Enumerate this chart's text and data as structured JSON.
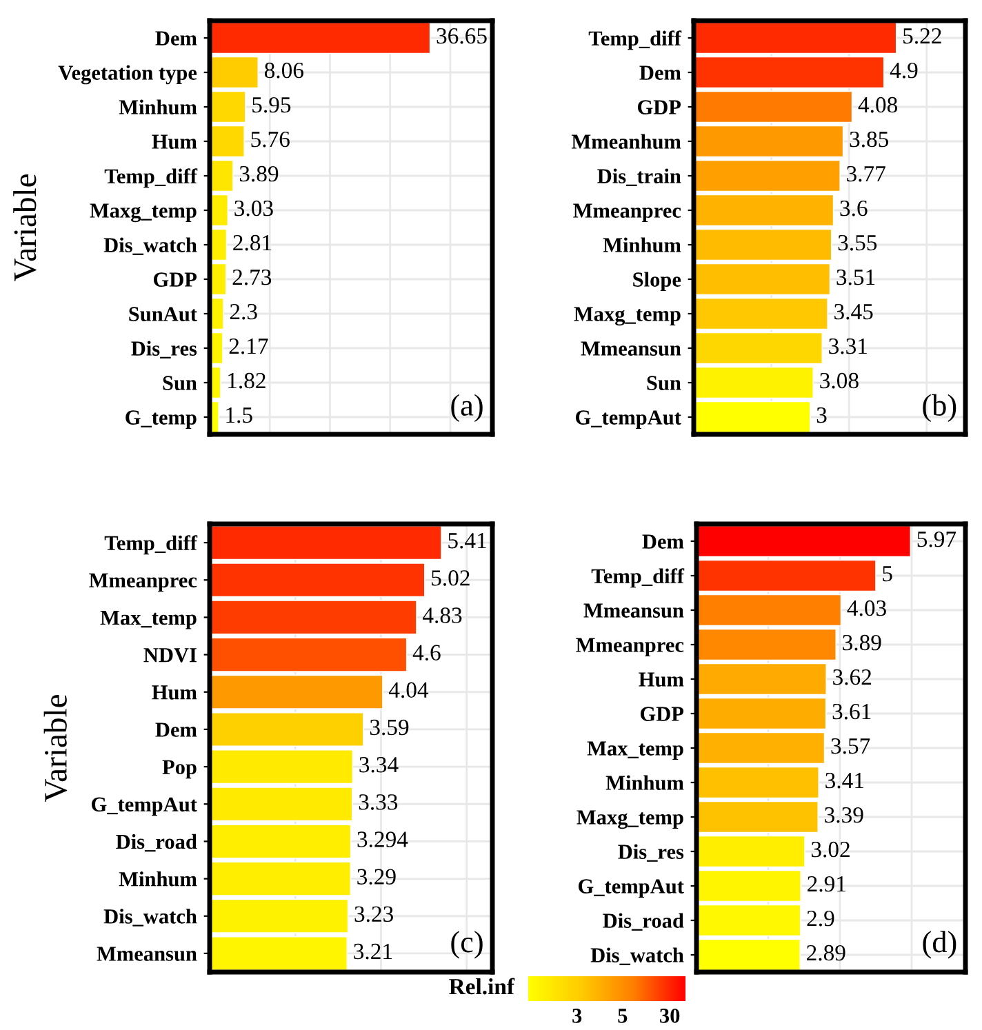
{
  "chart_data": [
    {
      "type": "bar",
      "orientation": "horizontal",
      "ylabel": "Variable",
      "annotations": [
        "(a)"
      ],
      "data_labels": true,
      "grid": true,
      "tick_labels": "y",
      "xlim": [
        0,
        47
      ],
      "xticks": [
        {
          "value": 0,
          "label": null
        },
        {
          "value": 10,
          "label": null
        },
        {
          "value": 20,
          "label": null
        },
        {
          "value": 30,
          "label": null
        },
        {
          "value": 40,
          "label": null
        }
      ],
      "categories": [
        "Dem",
        "Vegetation type",
        "Minhum",
        "Hum",
        "Temp_diff",
        "Maxg_temp",
        "Dis_watch",
        "GDP",
        "SunAut",
        "Dis_res",
        "Sun",
        "G_temp"
      ],
      "values": [
        36.65,
        8.06,
        5.95,
        5.76,
        3.89,
        3.03,
        2.81,
        2.73,
        2.3,
        2.17,
        1.82,
        1.5
      ],
      "colors": [
        "#ff2a00",
        "#ffcc00",
        "#ffd800",
        "#ffd800",
        "#ffe600",
        "#ffec00",
        "#ffee00",
        "#ffee00",
        "#fff200",
        "#fff400",
        "#fff800",
        "#ffff00"
      ]
    },
    {
      "type": "bar",
      "orientation": "horizontal",
      "annotations": [
        "(b)"
      ],
      "data_labels": true,
      "grid": true,
      "tick_labels": "y",
      "xlim": [
        0,
        7
      ],
      "xticks": [
        {
          "value": 0,
          "label": null
        },
        {
          "value": 2,
          "label": null
        },
        {
          "value": 4,
          "label": null
        },
        {
          "value": 6,
          "label": null
        }
      ],
      "categories": [
        "Temp_diff",
        "Dem",
        "GDP",
        "Mmeanhum",
        "Dis_train",
        "Mmeanprec",
        "Minhum",
        "Slope",
        "Maxg_temp",
        "Mmeansun",
        "Sun",
        "G_tempAut"
      ],
      "values": [
        5.22,
        4.9,
        4.08,
        3.85,
        3.77,
        3.6,
        3.55,
        3.51,
        3.45,
        3.31,
        3.08,
        3
      ],
      "colors": [
        "#ff2a00",
        "#ff3300",
        "#ff7a00",
        "#ff9900",
        "#ffa000",
        "#ffb300",
        "#ffbb00",
        "#ffbf00",
        "#ffc800",
        "#ffd700",
        "#fff200",
        "#ffff00"
      ]
    },
    {
      "type": "bar",
      "orientation": "horizontal",
      "ylabel": "Variable",
      "annotations": [
        "(c)"
      ],
      "data_labels": true,
      "grid": true,
      "tick_labels": "y",
      "xlim": [
        0,
        6.6
      ],
      "xticks": [
        {
          "value": 0,
          "label": null
        },
        {
          "value": 2,
          "label": null
        },
        {
          "value": 4,
          "label": null
        },
        {
          "value": 6,
          "label": null
        }
      ],
      "categories": [
        "Temp_diff",
        "Mmeanprec",
        "Max_temp",
        "NDVI",
        "Hum",
        "Dem",
        "Pop",
        "G_tempAut",
        "Dis_road",
        "Minhum",
        "Dis_watch",
        "Mmeansun"
      ],
      "values": [
        5.41,
        5.02,
        4.83,
        4.6,
        4.04,
        3.59,
        3.34,
        3.33,
        3.294,
        3.29,
        3.23,
        3.21
      ],
      "colors": [
        "#ff2a00",
        "#ff3300",
        "#ff3c00",
        "#ff5000",
        "#ff9900",
        "#ffd000",
        "#ffea00",
        "#ffea00",
        "#ffee00",
        "#ffee00",
        "#fff200",
        "#fff500"
      ]
    },
    {
      "type": "bar",
      "orientation": "horizontal",
      "annotations": [
        "(d)"
      ],
      "data_labels": true,
      "grid": true,
      "tick_labels": "y",
      "xlim": [
        0,
        7.5
      ],
      "xticks": [
        {
          "value": 0,
          "label": null
        },
        {
          "value": 2,
          "label": null
        },
        {
          "value": 4,
          "label": null
        },
        {
          "value": 6,
          "label": null
        }
      ],
      "categories": [
        "Dem",
        "Temp_diff",
        "Mmeansun",
        "Mmeanprec",
        "Hum",
        "GDP",
        "Max_temp",
        "Minhum",
        "Maxg_temp",
        "Dis_res",
        "G_tempAut",
        "Dis_road",
        "Dis_watch"
      ],
      "values": [
        5.97,
        5,
        4.03,
        3.89,
        3.62,
        3.61,
        3.57,
        3.41,
        3.39,
        3.02,
        2.91,
        2.9,
        2.89
      ],
      "colors": [
        "#ff0000",
        "#ff3300",
        "#ff8000",
        "#ff8800",
        "#ffaa00",
        "#ffac00",
        "#ffb000",
        "#ffc000",
        "#ffc200",
        "#ffee00",
        "#fff500",
        "#fff800",
        "#ffff00"
      ]
    },
    {
      "type": "other",
      "annotations": [
        "Rel.inf",
        "3",
        "5",
        "30"
      ]
    }
  ]
}
